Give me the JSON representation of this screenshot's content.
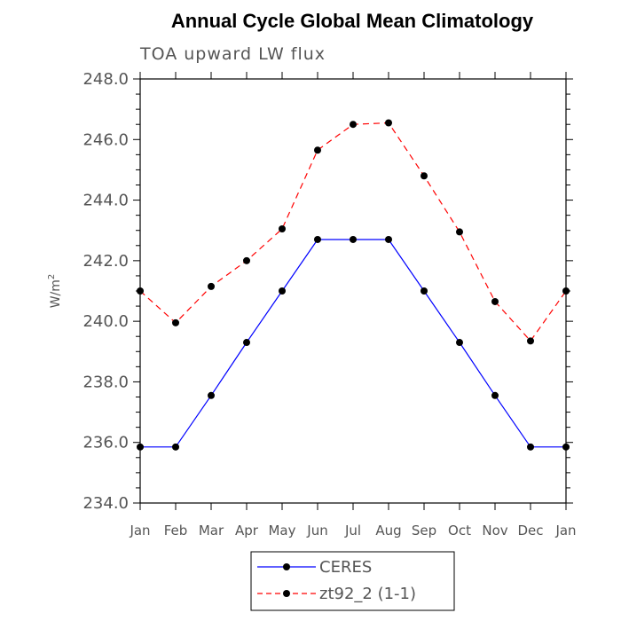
{
  "chart_data": {
    "type": "line",
    "title": "Annual Cycle Global Mean Climatology",
    "subtitle": "TOA upward LW flux",
    "xlabel": "",
    "ylabel": "W/m",
    "ylabel_superscript": "2",
    "categories": [
      "Jan",
      "Feb",
      "Mar",
      "Apr",
      "May",
      "Jun",
      "Jul",
      "Aug",
      "Sep",
      "Oct",
      "Nov",
      "Dec",
      "Jan"
    ],
    "ylim": [
      234.0,
      248.0
    ],
    "yticks": [
      "234.0",
      "236.0",
      "238.0",
      "240.0",
      "242.0",
      "244.0",
      "246.0",
      "248.0"
    ],
    "grid": false,
    "legend_position": "bottom-center",
    "series": [
      {
        "name": "CERES",
        "color": "#0000ff",
        "dash": "solid",
        "marker": "dot",
        "values": [
          235.85,
          235.85,
          237.55,
          239.3,
          241.0,
          242.7,
          242.7,
          242.7,
          241.0,
          239.3,
          237.55,
          235.85,
          235.85
        ]
      },
      {
        "name": "zt92_2 (1-1)",
        "color": "#ff0000",
        "dash": "dashed",
        "marker": "dot",
        "values": [
          241.0,
          239.95,
          241.15,
          242.0,
          243.05,
          245.65,
          246.5,
          246.55,
          244.8,
          242.95,
          240.65,
          239.35,
          241.0
        ]
      }
    ]
  }
}
